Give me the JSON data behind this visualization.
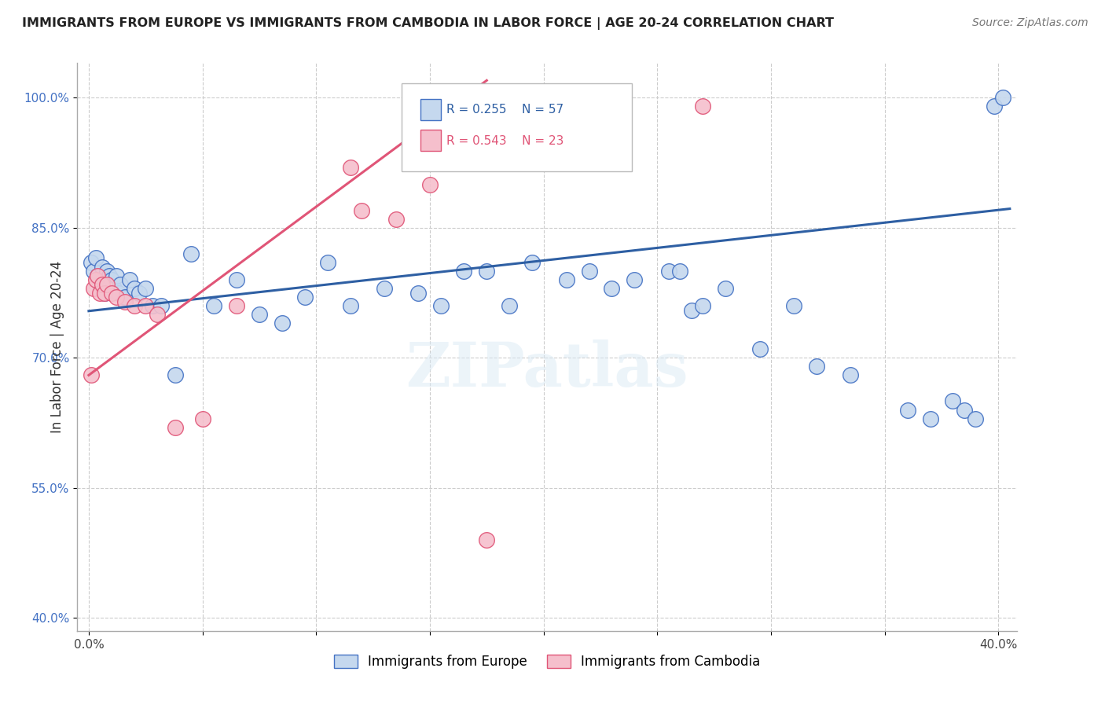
{
  "title": "IMMIGRANTS FROM EUROPE VS IMMIGRANTS FROM CAMBODIA IN LABOR FORCE | AGE 20-24 CORRELATION CHART",
  "source": "Source: ZipAtlas.com",
  "ylabel": "In Labor Force | Age 20-24",
  "xlim": [
    -0.005,
    0.408
  ],
  "ylim": [
    0.385,
    1.04
  ],
  "xticks": [
    0.0,
    0.05,
    0.1,
    0.15,
    0.2,
    0.25,
    0.3,
    0.35,
    0.4
  ],
  "xticklabels": [
    "0.0%",
    "",
    "",
    "",
    "",
    "",
    "",
    "",
    "40.0%"
  ],
  "ytick_positions": [
    0.4,
    0.55,
    0.7,
    0.85,
    1.0
  ],
  "ytick_labels": [
    "40.0%",
    "55.0%",
    "70.0%",
    "85.0%",
    "100.0%"
  ],
  "blue_R": 0.255,
  "blue_N": 57,
  "pink_R": 0.543,
  "pink_N": 23,
  "legend_label_blue": "Immigrants from Europe",
  "legend_label_pink": "Immigrants from Cambodia",
  "blue_color": "#c5d8ee",
  "pink_color": "#f5bfcc",
  "blue_edge_color": "#4472c4",
  "pink_edge_color": "#e05577",
  "blue_line_color": "#2e5fa3",
  "pink_line_color": "#e05577",
  "watermark": "ZIPatlas",
  "blue_scatter_x": [
    0.001,
    0.002,
    0.003,
    0.004,
    0.005,
    0.006,
    0.007,
    0.008,
    0.009,
    0.01,
    0.011,
    0.012,
    0.013,
    0.014,
    0.016,
    0.018,
    0.02,
    0.022,
    0.025,
    0.028,
    0.032,
    0.038,
    0.045,
    0.055,
    0.065,
    0.075,
    0.085,
    0.095,
    0.105,
    0.115,
    0.13,
    0.145,
    0.155,
    0.165,
    0.175,
    0.185,
    0.195,
    0.21,
    0.22,
    0.23,
    0.24,
    0.255,
    0.26,
    0.265,
    0.27,
    0.28,
    0.295,
    0.31,
    0.32,
    0.335,
    0.36,
    0.37,
    0.38,
    0.385,
    0.39,
    0.398,
    0.402
  ],
  "blue_scatter_y": [
    0.81,
    0.8,
    0.815,
    0.795,
    0.785,
    0.805,
    0.775,
    0.8,
    0.795,
    0.79,
    0.78,
    0.795,
    0.775,
    0.785,
    0.77,
    0.79,
    0.78,
    0.775,
    0.78,
    0.76,
    0.76,
    0.68,
    0.82,
    0.76,
    0.79,
    0.75,
    0.74,
    0.77,
    0.81,
    0.76,
    0.78,
    0.775,
    0.76,
    0.8,
    0.8,
    0.76,
    0.81,
    0.79,
    0.8,
    0.78,
    0.79,
    0.8,
    0.8,
    0.755,
    0.76,
    0.78,
    0.71,
    0.76,
    0.69,
    0.68,
    0.64,
    0.63,
    0.65,
    0.64,
    0.63,
    0.99,
    1.0
  ],
  "pink_scatter_x": [
    0.001,
    0.002,
    0.003,
    0.004,
    0.005,
    0.006,
    0.007,
    0.008,
    0.01,
    0.012,
    0.016,
    0.02,
    0.025,
    0.03,
    0.038,
    0.05,
    0.065,
    0.115,
    0.12,
    0.135,
    0.15,
    0.175,
    0.27
  ],
  "pink_scatter_y": [
    0.68,
    0.78,
    0.79,
    0.795,
    0.775,
    0.785,
    0.775,
    0.785,
    0.775,
    0.77,
    0.765,
    0.76,
    0.76,
    0.75,
    0.62,
    0.63,
    0.76,
    0.92,
    0.87,
    0.86,
    0.9,
    0.49,
    0.99
  ],
  "blue_trendline_x": [
    0.0,
    0.405
  ],
  "blue_trendline_y": [
    0.754,
    0.872
  ],
  "pink_trendline_x": [
    0.0,
    0.175
  ],
  "pink_trendline_y": [
    0.68,
    1.02
  ]
}
